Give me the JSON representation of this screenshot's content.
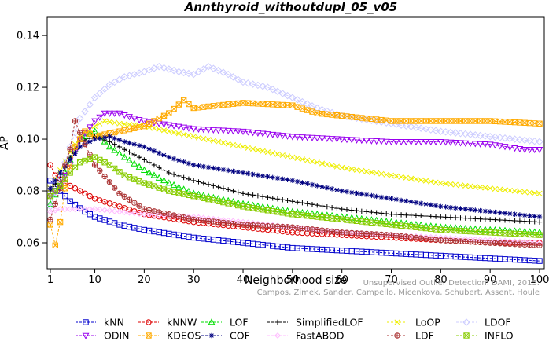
{
  "chart_data": {
    "type": "line",
    "title": "Annthyroid_withoutdupl_05_v05",
    "xlabel": "Neighborhood size",
    "ylabel": "AP",
    "xlim": [
      1,
      100
    ],
    "ylim": [
      0.05,
      0.147
    ],
    "xticks": [
      1,
      10,
      20,
      30,
      40,
      50,
      60,
      70,
      80,
      90,
      100
    ],
    "yticks": [
      0.06,
      0.08,
      0.1,
      0.12,
      0.14
    ],
    "ytick_labels": [
      "0.06",
      "0.08",
      "0.10",
      "0.12",
      "0.14"
    ],
    "grid": false,
    "legend_placement": "bottom",
    "watermark": {
      "line1": "Unsupervised Outlier Detection. DAMI, 2015.",
      "line2": "Campos, Zimek, Sander, Campello, Micenkova, Schubert, Assent, Houle"
    },
    "series": [
      {
        "name": "kNN",
        "color": "#0000cc",
        "marker": "square",
        "points": [
          [
            1,
            0.084
          ],
          [
            3,
            0.08
          ],
          [
            5,
            0.076
          ],
          [
            8,
            0.072
          ],
          [
            10,
            0.07
          ],
          [
            15,
            0.067
          ],
          [
            20,
            0.065
          ],
          [
            30,
            0.062
          ],
          [
            40,
            0.06
          ],
          [
            50,
            0.058
          ],
          [
            60,
            0.057
          ],
          [
            70,
            0.056
          ],
          [
            80,
            0.055
          ],
          [
            90,
            0.054
          ],
          [
            100,
            0.053
          ]
        ]
      },
      {
        "name": "kNNW",
        "color": "#dd0000",
        "marker": "circle",
        "points": [
          [
            1,
            0.09
          ],
          [
            2,
            0.086
          ],
          [
            4,
            0.083
          ],
          [
            6,
            0.081
          ],
          [
            8,
            0.079
          ],
          [
            10,
            0.077
          ],
          [
            15,
            0.074
          ],
          [
            20,
            0.071
          ],
          [
            30,
            0.068
          ],
          [
            40,
            0.066
          ],
          [
            50,
            0.064
          ],
          [
            60,
            0.063
          ],
          [
            70,
            0.062
          ],
          [
            80,
            0.061
          ],
          [
            90,
            0.06
          ],
          [
            100,
            0.06
          ]
        ]
      },
      {
        "name": "LOF",
        "color": "#00dd00",
        "marker": "triangle",
        "points": [
          [
            1,
            0.075
          ],
          [
            3,
            0.082
          ],
          [
            5,
            0.092
          ],
          [
            7,
            0.1
          ],
          [
            10,
            0.103
          ],
          [
            13,
            0.097
          ],
          [
            16,
            0.093
          ],
          [
            20,
            0.088
          ],
          [
            25,
            0.083
          ],
          [
            30,
            0.079
          ],
          [
            40,
            0.075
          ],
          [
            50,
            0.072
          ],
          [
            60,
            0.07
          ],
          [
            70,
            0.068
          ],
          [
            80,
            0.066
          ],
          [
            90,
            0.065
          ],
          [
            100,
            0.064
          ]
        ]
      },
      {
        "name": "SimplifiedLOF",
        "color": "#000000",
        "marker": "plus",
        "points": [
          [
            1,
            0.08
          ],
          [
            3,
            0.085
          ],
          [
            5,
            0.093
          ],
          [
            7,
            0.099
          ],
          [
            10,
            0.101
          ],
          [
            13,
            0.099
          ],
          [
            16,
            0.096
          ],
          [
            20,
            0.092
          ],
          [
            25,
            0.087
          ],
          [
            30,
            0.084
          ],
          [
            40,
            0.079
          ],
          [
            50,
            0.076
          ],
          [
            60,
            0.073
          ],
          [
            70,
            0.071
          ],
          [
            80,
            0.07
          ],
          [
            90,
            0.069
          ],
          [
            100,
            0.068
          ]
        ]
      },
      {
        "name": "LoOP",
        "color": "#eeee00",
        "marker": "x",
        "points": [
          [
            1,
            0.081
          ],
          [
            3,
            0.088
          ],
          [
            5,
            0.095
          ],
          [
            7,
            0.101
          ],
          [
            10,
            0.105
          ],
          [
            12,
            0.107
          ],
          [
            15,
            0.106
          ],
          [
            20,
            0.105
          ],
          [
            30,
            0.101
          ],
          [
            40,
            0.097
          ],
          [
            50,
            0.093
          ],
          [
            60,
            0.089
          ],
          [
            70,
            0.086
          ],
          [
            80,
            0.083
          ],
          [
            90,
            0.081
          ],
          [
            100,
            0.079
          ]
        ]
      },
      {
        "name": "LDOF",
        "color": "#ccccff",
        "marker": "diamond",
        "points": [
          [
            1,
            0.074
          ],
          [
            3,
            0.085
          ],
          [
            5,
            0.097
          ],
          [
            7,
            0.108
          ],
          [
            10,
            0.116
          ],
          [
            13,
            0.121
          ],
          [
            16,
            0.124
          ],
          [
            20,
            0.126
          ],
          [
            23,
            0.128
          ],
          [
            27,
            0.126
          ],
          [
            30,
            0.125
          ],
          [
            33,
            0.128
          ],
          [
            37,
            0.125
          ],
          [
            40,
            0.122
          ],
          [
            45,
            0.12
          ],
          [
            50,
            0.116
          ],
          [
            55,
            0.112
          ],
          [
            60,
            0.109
          ],
          [
            70,
            0.106
          ],
          [
            80,
            0.103
          ],
          [
            90,
            0.101
          ],
          [
            100,
            0.099
          ]
        ]
      },
      {
        "name": "ODIN",
        "color": "#9900ee",
        "marker": "triangle-down",
        "points": [
          [
            1,
            0.078
          ],
          [
            3,
            0.082
          ],
          [
            5,
            0.09
          ],
          [
            7,
            0.1
          ],
          [
            10,
            0.107
          ],
          [
            12,
            0.11
          ],
          [
            15,
            0.11
          ],
          [
            18,
            0.108
          ],
          [
            20,
            0.107
          ],
          [
            30,
            0.104
          ],
          [
            40,
            0.103
          ],
          [
            50,
            0.101
          ],
          [
            60,
            0.1
          ],
          [
            70,
            0.099
          ],
          [
            80,
            0.099
          ],
          [
            90,
            0.098
          ],
          [
            97,
            0.096
          ],
          [
            100,
            0.096
          ]
        ]
      },
      {
        "name": "KDEOS",
        "color": "#ffaa00",
        "marker": "square-x",
        "points": [
          [
            1,
            0.067
          ],
          [
            2,
            0.059
          ],
          [
            3,
            0.068
          ],
          [
            4,
            0.081
          ],
          [
            6,
            0.097
          ],
          [
            8,
            0.103
          ],
          [
            10,
            0.101
          ],
          [
            15,
            0.103
          ],
          [
            20,
            0.105
          ],
          [
            25,
            0.11
          ],
          [
            28,
            0.115
          ],
          [
            30,
            0.112
          ],
          [
            40,
            0.114
          ],
          [
            50,
            0.113
          ],
          [
            55,
            0.11
          ],
          [
            60,
            0.109
          ],
          [
            65,
            0.108
          ],
          [
            70,
            0.107
          ],
          [
            80,
            0.107
          ],
          [
            90,
            0.107
          ],
          [
            100,
            0.106
          ]
        ]
      },
      {
        "name": "COF",
        "color": "#000080",
        "marker": "asterisk",
        "points": [
          [
            1,
            0.081
          ],
          [
            3,
            0.087
          ],
          [
            5,
            0.092
          ],
          [
            7,
            0.097
          ],
          [
            10,
            0.1
          ],
          [
            13,
            0.101
          ],
          [
            16,
            0.099
          ],
          [
            20,
            0.097
          ],
          [
            25,
            0.093
          ],
          [
            30,
            0.09
          ],
          [
            40,
            0.087
          ],
          [
            50,
            0.084
          ],
          [
            60,
            0.08
          ],
          [
            70,
            0.077
          ],
          [
            80,
            0.074
          ],
          [
            90,
            0.072
          ],
          [
            100,
            0.07
          ]
        ]
      },
      {
        "name": "FastABOD",
        "color": "#ffbbff",
        "marker": "diamond-small",
        "points": [
          [
            1,
            0.072
          ],
          [
            3,
            0.073
          ],
          [
            5,
            0.073
          ],
          [
            10,
            0.073
          ],
          [
            15,
            0.072
          ],
          [
            20,
            0.071
          ],
          [
            30,
            0.07
          ],
          [
            40,
            0.068
          ],
          [
            50,
            0.066
          ],
          [
            60,
            0.064
          ],
          [
            70,
            0.063
          ],
          [
            80,
            0.062
          ],
          [
            90,
            0.061
          ],
          [
            100,
            0.06
          ]
        ]
      },
      {
        "name": "LDF",
        "color": "#aa3333",
        "marker": "circle-plus",
        "points": [
          [
            1,
            0.069
          ],
          [
            2,
            0.075
          ],
          [
            3,
            0.081
          ],
          [
            4,
            0.09
          ],
          [
            5,
            0.096
          ],
          [
            6,
            0.107
          ],
          [
            8,
            0.098
          ],
          [
            10,
            0.09
          ],
          [
            15,
            0.079
          ],
          [
            20,
            0.073
          ],
          [
            30,
            0.069
          ],
          [
            40,
            0.067
          ],
          [
            50,
            0.066
          ],
          [
            60,
            0.064
          ],
          [
            70,
            0.063
          ],
          [
            80,
            0.061
          ],
          [
            90,
            0.06
          ],
          [
            100,
            0.059
          ]
        ]
      },
      {
        "name": "INFLO",
        "color": "#88cc00",
        "marker": "square-hash",
        "points": [
          [
            1,
            0.078
          ],
          [
            3,
            0.082
          ],
          [
            5,
            0.087
          ],
          [
            7,
            0.091
          ],
          [
            10,
            0.093
          ],
          [
            13,
            0.09
          ],
          [
            16,
            0.086
          ],
          [
            20,
            0.083
          ],
          [
            25,
            0.08
          ],
          [
            30,
            0.078
          ],
          [
            40,
            0.074
          ],
          [
            50,
            0.071
          ],
          [
            60,
            0.069
          ],
          [
            70,
            0.067
          ],
          [
            80,
            0.065
          ],
          [
            90,
            0.064
          ],
          [
            100,
            0.063
          ]
        ]
      }
    ],
    "legend_rows": [
      [
        "kNN",
        "kNNW",
        "LOF",
        "SimplifiedLOF",
        "LoOP",
        "LDOF"
      ],
      [
        "ODIN",
        "KDEOS",
        "COF",
        "FastABOD",
        "LDF",
        "INFLO"
      ]
    ]
  }
}
